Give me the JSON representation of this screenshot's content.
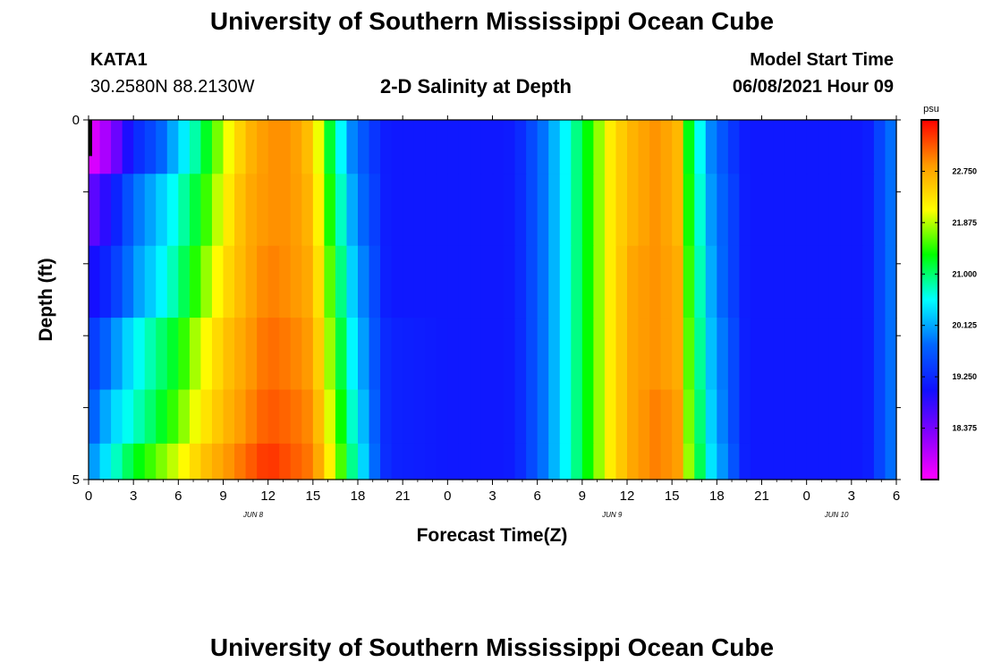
{
  "page": {
    "title": "University of Southern Mississippi Ocean Cube",
    "footer_title": "University of Southern Mississippi Ocean Cube",
    "station": {
      "name": "KATA1",
      "coords": "30.2580N  88.2130W"
    },
    "plot_title": "2-D Salinity at Depth",
    "model_start": {
      "label": "Model Start Time",
      "value": "06/08/2021 Hour 09"
    }
  },
  "chart_data": {
    "type": "heatmap",
    "title": "2-D Salinity at Depth",
    "xlabel": "Forecast Time(Z)",
    "ylabel": "Depth (ft)",
    "x_ticks": [
      "0",
      "3",
      "6",
      "9",
      "12",
      "15",
      "18",
      "21",
      "0",
      "3",
      "6",
      "9",
      "12",
      "15",
      "18",
      "21",
      "0",
      "3",
      "6"
    ],
    "x_day_labels": [
      {
        "label": "JUN 8",
        "at_hour": 11
      },
      {
        "label": "JUN 9",
        "at_hour": 35
      },
      {
        "label": "JUN 10",
        "at_hour": 50
      }
    ],
    "x_range_hours": [
      0,
      54
    ],
    "y_ticks": [
      "0",
      "5"
    ],
    "y_range": [
      0,
      5
    ],
    "depth_levels": [
      0.25,
      1.25,
      2.25,
      3.25,
      4.25,
      4.75
    ],
    "colorbar": {
      "unit": "psu",
      "min": 17.5,
      "max": 23.625,
      "tick_values": [
        18.375,
        19.25,
        20.125,
        21.0,
        21.875,
        22.75
      ],
      "tick_labels": [
        "18.375",
        "19.250",
        "20.125",
        "21.000",
        "21.875",
        "22.750"
      ],
      "colors": [
        "#ff00ff",
        "#8800ff",
        "#1010ff",
        "#0066ff",
        "#00ffff",
        "#00ff00",
        "#ffff00",
        "#ff9900",
        "#ff0000"
      ]
    },
    "salinity_profile_hours": [
      0,
      1.5,
      3,
      4.5,
      6,
      7.5,
      9,
      10.5,
      12,
      13.5,
      15,
      16,
      17.5,
      19,
      20,
      24,
      28,
      29,
      30.5,
      32,
      33.5,
      35,
      36.5,
      38,
      39.5,
      40,
      41.5,
      43,
      44,
      48,
      52,
      54
    ],
    "salinity_profile_values": [
      [
        17.6,
        18.2,
        19.2,
        19.6,
        20.3,
        21.0,
        21.9,
        22.6,
        22.9,
        22.9,
        22.5,
        21.3,
        20.0,
        19.4,
        19.1,
        19.1,
        19.1,
        19.3,
        19.9,
        20.6,
        21.4,
        22.3,
        22.7,
        22.9,
        22.6,
        21.4,
        20.0,
        19.4,
        19.1,
        19.1,
        19.1,
        20.0
      ],
      [
        18.4,
        19.0,
        19.8,
        20.2,
        20.7,
        21.3,
        22.1,
        22.7,
        22.9,
        22.9,
        22.6,
        21.5,
        20.2,
        19.5,
        19.1,
        19.1,
        19.1,
        19.3,
        19.9,
        20.6,
        21.4,
        22.3,
        22.7,
        22.9,
        22.6,
        21.5,
        20.1,
        19.5,
        19.1,
        19.1,
        19.1,
        20.0
      ],
      [
        18.9,
        19.3,
        20.0,
        20.4,
        20.9,
        21.6,
        22.3,
        22.7,
        23.0,
        22.9,
        22.7,
        21.7,
        20.4,
        19.6,
        19.1,
        19.1,
        19.1,
        19.3,
        19.9,
        20.6,
        21.4,
        22.3,
        22.8,
        22.9,
        22.7,
        21.6,
        20.2,
        19.5,
        19.1,
        19.1,
        19.1,
        20.0
      ],
      [
        19.3,
        19.9,
        20.5,
        20.9,
        21.3,
        22.0,
        22.5,
        22.8,
        23.1,
        23.0,
        22.8,
        21.9,
        20.6,
        19.7,
        19.2,
        19.1,
        19.1,
        19.3,
        19.9,
        20.6,
        21.4,
        22.3,
        22.8,
        22.9,
        22.7,
        21.7,
        20.3,
        19.6,
        19.1,
        19.1,
        19.1,
        20.0
      ],
      [
        19.6,
        20.3,
        20.7,
        21.1,
        21.6,
        22.2,
        22.6,
        22.9,
        23.2,
        23.1,
        22.9,
        22.1,
        20.8,
        19.8,
        19.2,
        19.1,
        19.1,
        19.3,
        19.9,
        20.6,
        21.4,
        22.3,
        22.8,
        23.0,
        22.8,
        21.8,
        20.4,
        19.6,
        19.1,
        19.1,
        19.1,
        20.0
      ],
      [
        19.9,
        20.6,
        21.2,
        21.6,
        22.0,
        22.5,
        22.8,
        23.1,
        23.4,
        23.2,
        23.0,
        22.3,
        21.0,
        19.9,
        19.2,
        19.1,
        19.1,
        19.3,
        19.9,
        20.6,
        21.4,
        22.3,
        22.8,
        23.0,
        22.8,
        21.9,
        20.5,
        19.7,
        19.1,
        19.1,
        19.1,
        20.0
      ]
    ]
  }
}
